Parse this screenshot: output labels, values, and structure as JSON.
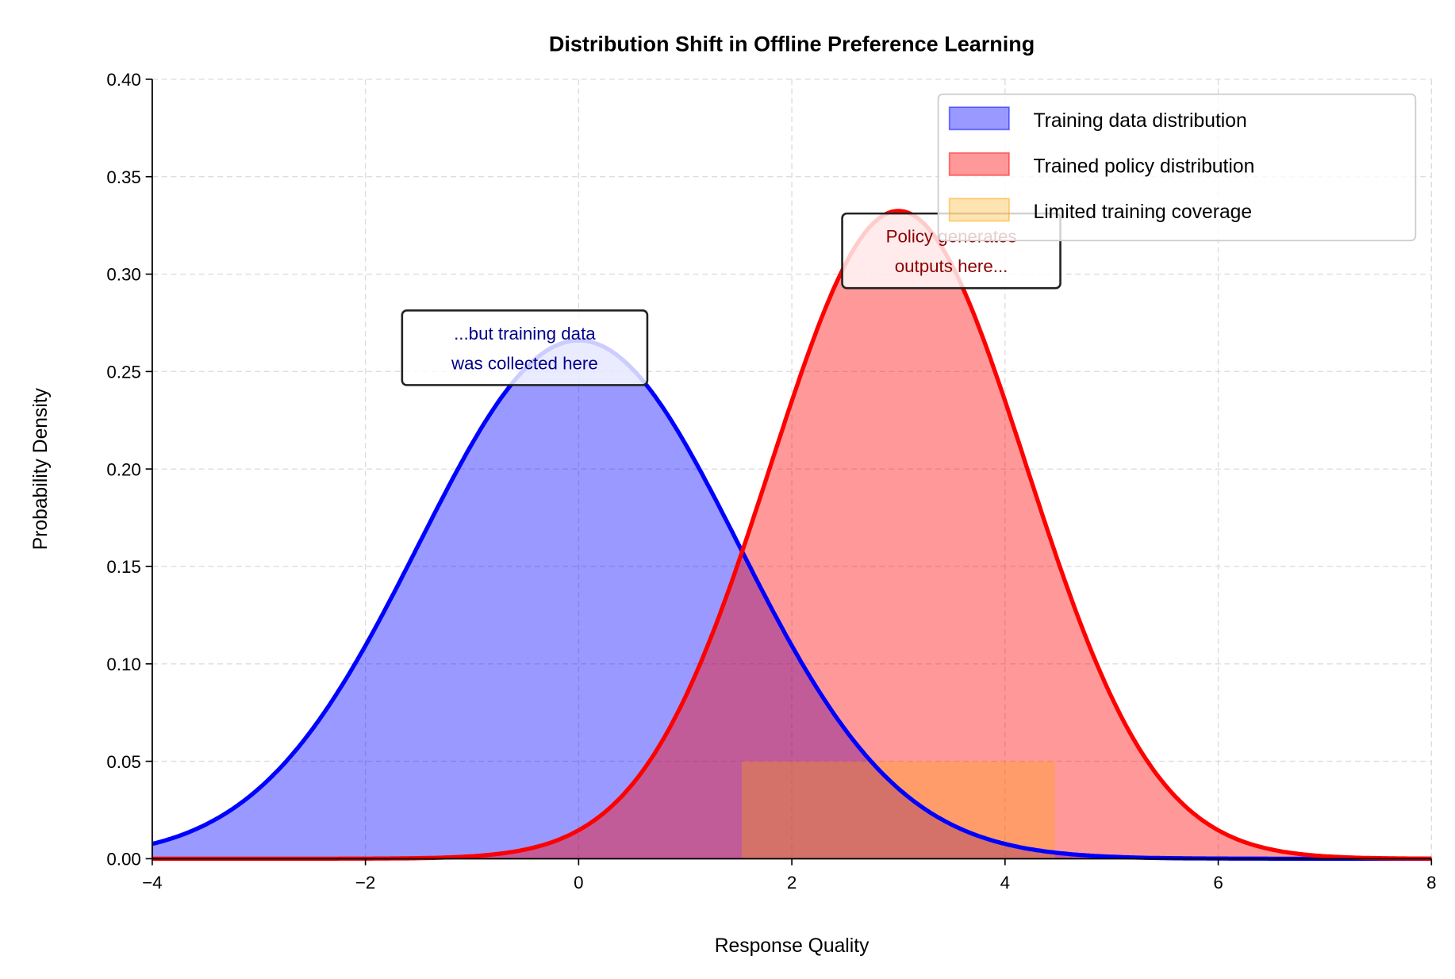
{
  "chart_data": {
    "type": "area",
    "title": "Distribution Shift in Offline Preference Learning",
    "xlabel": "Response Quality",
    "ylabel": "Probability Density",
    "xlim": [
      -4,
      8
    ],
    "ylim": [
      0,
      0.4
    ],
    "xticks": [
      -4,
      -2,
      0,
      2,
      4,
      6,
      8
    ],
    "xtick_labels": [
      "−4",
      "−2",
      "0",
      "2",
      "4",
      "6",
      "8"
    ],
    "yticks": [
      0,
      0.05,
      0.1,
      0.15,
      0.2,
      0.25,
      0.3,
      0.35,
      0.4
    ],
    "ytick_labels": [
      "0.00",
      "0.05",
      "0.10",
      "0.15",
      "0.20",
      "0.25",
      "0.30",
      "0.35",
      "0.40"
    ],
    "grid": true,
    "legend_position": "top-right",
    "series": [
      {
        "name": "Training data distribution",
        "kind": "normal",
        "mean": 0,
        "std": 1.5,
        "line_color": "#0000ff",
        "fill_color": "#0000ff",
        "fill_alpha": 0.4
      },
      {
        "name": "Trained policy distribution",
        "kind": "normal",
        "mean": 3,
        "std": 1.2,
        "line_color": "#ff0000",
        "fill_color": "#ff0000",
        "fill_alpha": 0.4
      },
      {
        "name": "Limited training coverage",
        "kind": "band",
        "x_range": [
          1.53,
          4.47
        ],
        "y_range": [
          0,
          0.05
        ],
        "fill_color": "#ffa500",
        "fill_alpha": 0.3
      }
    ],
    "annotations": [
      {
        "lines": [
          "...but training data",
          "was collected here"
        ],
        "x": -0.5,
        "y": 0.27,
        "color": "#00008b"
      },
      {
        "lines": [
          "Policy generates",
          "outputs here..."
        ],
        "x": 3.5,
        "y": 0.318,
        "color": "#8b0000"
      }
    ]
  }
}
